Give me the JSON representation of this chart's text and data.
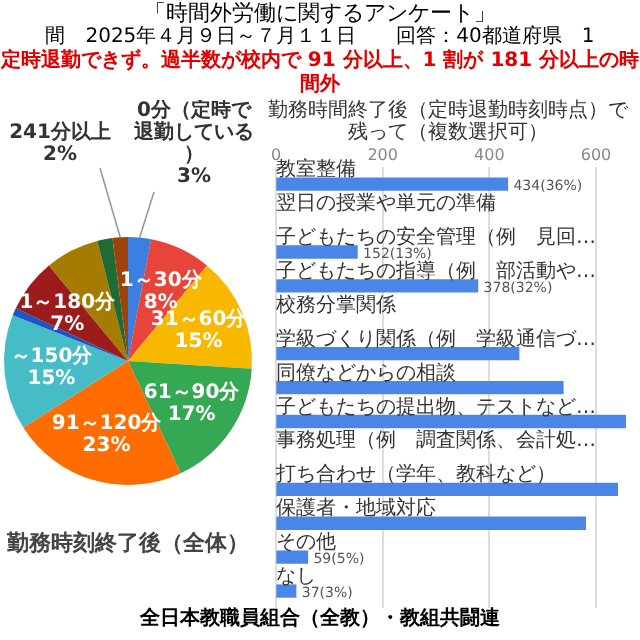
{
  "chart_data": [
    {
      "type": "pie",
      "title": "「時間外労働に関するアンケート」",
      "subtitle": "間　2025年４月９日～７月１１日　　回答：40都道府県　1",
      "annotations": [
        "定時退勤できず。過半数が校内で 91 分以上、1 割が 181 分以上の時間外",
        "勤務時刻終了後（全体）"
      ],
      "categories": [
        "0分（定時で退勤している）",
        "1～30分",
        "31～60分",
        "61～90分",
        "91～120分",
        "～150分",
        null,
        "1～180分",
        null,
        null,
        "241分以上"
      ],
      "values": [
        3,
        8,
        15,
        17,
        23,
        15,
        1,
        7,
        7,
        2,
        2
      ],
      "value_labels": [
        "3%",
        "8%",
        "15%",
        "17%",
        "23%",
        "15%",
        null,
        "7%",
        null,
        null,
        "2%"
      ],
      "colors": [
        "#3d7fe0",
        "#e8443a",
        "#f9b800",
        "#34a853",
        "#ff6d01",
        "#46bdc6",
        "#1a56c8",
        "#9c1c1c",
        "#a67c00",
        "#1e6b34",
        "#a0430a"
      ]
    },
    {
      "type": "bar",
      "orientation": "horizontal",
      "title": "勤務時間終了後（定時退勤時刻時点）で残って（複数選択可）",
      "annotations": [
        "全日本教職員組合（全教）・教組共闘連"
      ],
      "categories": [
        "教室整備",
        "翌日の授業や単元の準備",
        "子どもたちの安全管理（例　見回…",
        "子どもたちの指導（例　部活動や…",
        "校務分掌関係",
        "学級づくり関係（例　学級通信づ…",
        "同僚などからの相談",
        "子どもたちの提出物、テストなど…",
        "事務処理（例　調査関係、会計処…",
        "打ち合わせ（学年、教科など）",
        "保護者・地域対応",
        "その他",
        "なし"
      ],
      "values": [
        434,
        null,
        152,
        378,
        null,
        455,
        538,
        655,
        null,
        640,
        580,
        59,
        37
      ],
      "value_labels": [
        "434(36%)",
        null,
        "152(13%)",
        "378(32%)",
        null,
        null,
        null,
        null,
        null,
        null,
        null,
        "59(5%)",
        "37(3%)"
      ],
      "color": "#4a86e8",
      "xlim": [
        0,
        660
      ],
      "xticks": [
        0,
        200,
        400,
        600
      ],
      "grid": "x"
    }
  ]
}
